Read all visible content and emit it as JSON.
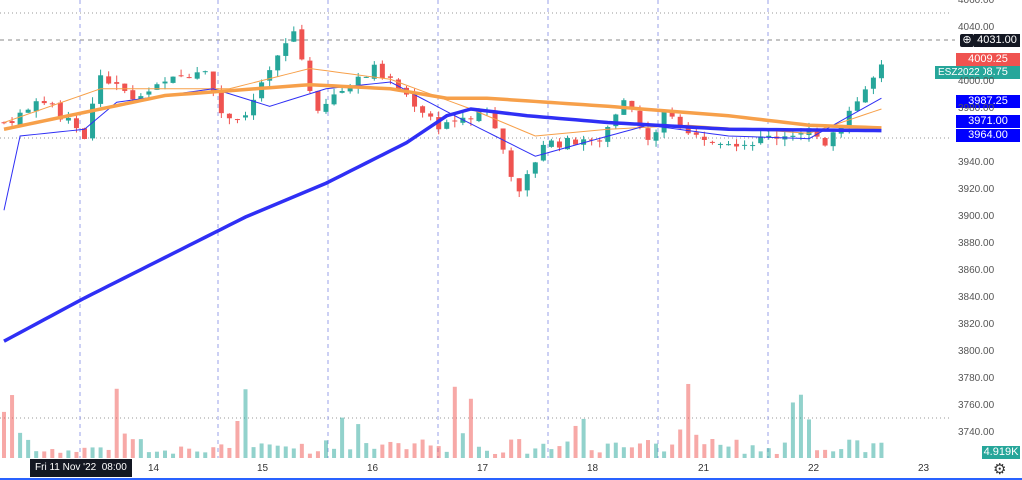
{
  "chart_data": {
    "type": "candlestick",
    "symbol": "ESZ2022",
    "y_ticks": [
      4060,
      4040,
      4000,
      3980,
      3940,
      3920,
      3900,
      3880,
      3860,
      3840,
      3820,
      3800,
      3780,
      3760,
      3740
    ],
    "ylim": [
      3735,
      4062
    ],
    "x_ticks": [
      "14",
      "15",
      "16",
      "17",
      "18",
      "21",
      "22",
      "23"
    ],
    "crosshair_time": "Fri 11 Nov '22  08:00",
    "crosshair_price": "4031.00",
    "price_labels": {
      "ask": "4009.25",
      "last": "4008.75",
      "ma1": "3987.25",
      "ma2": "3971.00",
      "ma3": "3964.00"
    },
    "volume_label": "4.919K",
    "price_path": [
      [
        0,
        3970
      ],
      [
        5,
        3985
      ],
      [
        10,
        3960
      ],
      [
        12,
        4005
      ],
      [
        16,
        3988
      ],
      [
        25,
        4012
      ],
      [
        27,
        3975
      ],
      [
        30,
        3975
      ],
      [
        36,
        4038
      ],
      [
        39,
        3975
      ],
      [
        41,
        3990
      ],
      [
        46,
        4010
      ],
      [
        50,
        3990
      ],
      [
        54,
        3968
      ],
      [
        60,
        3980
      ],
      [
        62,
        3950
      ],
      [
        64,
        3916
      ],
      [
        67,
        3955
      ],
      [
        74,
        3955
      ],
      [
        77,
        3990
      ],
      [
        80,
        3955
      ],
      [
        82,
        3975
      ],
      [
        87,
        3960
      ],
      [
        92,
        3955
      ],
      [
        100,
        3965
      ],
      [
        102,
        3955
      ],
      [
        109,
        4010
      ]
    ],
    "ma_slow_orange": [
      [
        0,
        3965
      ],
      [
        20,
        3990
      ],
      [
        38,
        3998
      ],
      [
        48,
        3995
      ],
      [
        55,
        3988
      ],
      [
        60,
        3988
      ],
      [
        75,
        3982
      ],
      [
        90,
        3975
      ],
      [
        100,
        3968
      ],
      [
        109,
        3966
      ]
    ],
    "ma_200_blue": [
      [
        0,
        3808
      ],
      [
        10,
        3840
      ],
      [
        20,
        3870
      ],
      [
        30,
        3900
      ],
      [
        40,
        3925
      ],
      [
        50,
        3955
      ],
      [
        55,
        3975
      ],
      [
        58,
        3980
      ],
      [
        65,
        3975
      ],
      [
        75,
        3970
      ],
      [
        90,
        3965
      ],
      [
        109,
        3964
      ]
    ],
    "ma_fast_blue": [
      [
        0,
        3905
      ],
      [
        2,
        3960
      ],
      [
        10,
        3965
      ],
      [
        14,
        3985
      ],
      [
        26,
        3995
      ],
      [
        33,
        3982
      ],
      [
        40,
        3995
      ],
      [
        48,
        4000
      ],
      [
        56,
        3975
      ],
      [
        66,
        3945
      ],
      [
        72,
        3955
      ],
      [
        80,
        3968
      ],
      [
        90,
        3960
      ],
      [
        100,
        3958
      ],
      [
        109,
        3988
      ]
    ],
    "ma_fast_orange": [
      [
        0,
        3970
      ],
      [
        12,
        3995
      ],
      [
        28,
        3995
      ],
      [
        38,
        4010
      ],
      [
        48,
        4002
      ],
      [
        58,
        3980
      ],
      [
        66,
        3960
      ],
      [
        75,
        3965
      ],
      [
        85,
        3968
      ],
      [
        100,
        3962
      ],
      [
        109,
        3980
      ]
    ],
    "colors": {
      "up": "#26a69a",
      "down": "#ef5350",
      "blue": "#2f2ff5",
      "orange": "#f7a04a"
    }
  }
}
